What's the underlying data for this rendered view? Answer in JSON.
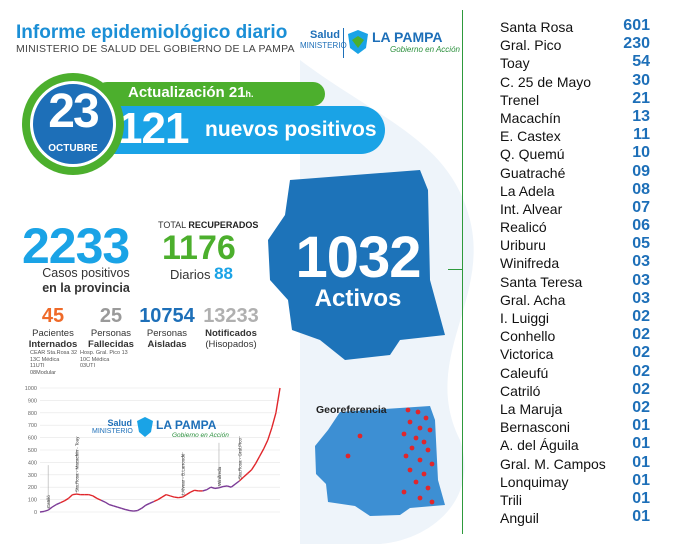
{
  "colors": {
    "blue": "#1aa3e6",
    "dark_blue": "#1d6fb8",
    "green": "#4caf2d",
    "orange": "#ef6a29",
    "gray": "#9a9a9a",
    "red": "#e0262b",
    "map_blue": "#1d73b9"
  },
  "header": {
    "title": "Informe epidemiológico diario",
    "subtitle": "MINISTERIO DE SALUD DEL GOBIERNO DE LA PAMPA"
  },
  "logo": {
    "salud": "Salud",
    "ministerio": "MINISTERIO",
    "lapampa": "LA PAMPA",
    "gobierno": "Gobierno en Acción",
    "icon": "la-pampa-shield-icon"
  },
  "update": {
    "day": "23",
    "month": "OCTUBRE",
    "label": "Actualización 21",
    "hour_suffix": "h.",
    "new_positives": "121",
    "new_positives_label": "nuevos positivos"
  },
  "totals": {
    "cases": "2233",
    "cases_line1": "Casos positivos",
    "cases_line2": "en la provincia",
    "recovered_prefix": "TOTAL",
    "recovered_label": "RECUPERADOS",
    "recovered": "1176",
    "daily_label": "Diarios",
    "daily": "88",
    "active": "1032",
    "active_label": "Activos"
  },
  "stats": [
    {
      "value": "45",
      "line1": "Pacientes",
      "line2": "Internados"
    },
    {
      "value": "25",
      "line1": "Personas",
      "line2": "Fallecidas"
    },
    {
      "value": "10754",
      "line1": "Personas",
      "line2": "Aisladas"
    },
    {
      "value": "13233",
      "line1": "Notificados",
      "line2": "(Hisopados)"
    }
  ],
  "hospital_notes": {
    "a": [
      "CEAR Sta.Rosa 32",
      "13C Médica",
      "11UTI",
      "08Modular"
    ],
    "b": [
      "Hosp. Gral. Pico 13",
      "10C Médica",
      "03UTI"
    ]
  },
  "georef_title": "Georeferencia",
  "chart_data": {
    "type": "line",
    "y_ticks": [
      "0",
      "100",
      "200",
      "300",
      "400",
      "500",
      "600",
      "700",
      "800",
      "900",
      "1000"
    ],
    "ylim": [
      0,
      1000
    ],
    "x": [
      0,
      1,
      2,
      3,
      4,
      5,
      6,
      7,
      8,
      9,
      10,
      11,
      12,
      13,
      14,
      15,
      16,
      17,
      18,
      19,
      20,
      21,
      22,
      23,
      24,
      25,
      26,
      27,
      28,
      29,
      30,
      31,
      32,
      33,
      34,
      35,
      36,
      37,
      38,
      39,
      40,
      41,
      42,
      43,
      44,
      45,
      46,
      47,
      48,
      49,
      50,
      51,
      52,
      53,
      54,
      55,
      56,
      57,
      58,
      59
    ],
    "values": [
      0,
      5,
      15,
      40,
      60,
      75,
      90,
      110,
      140,
      145,
      140,
      140,
      140,
      130,
      110,
      95,
      80,
      60,
      50,
      40,
      30,
      20,
      12,
      8,
      12,
      30,
      55,
      70,
      85,
      100,
      120,
      140,
      130,
      120,
      115,
      120,
      140,
      160,
      175,
      170,
      170,
      180,
      200,
      190,
      195,
      205,
      210,
      200,
      225,
      250,
      280,
      310,
      340,
      390,
      450,
      510,
      580,
      680,
      800,
      1000
    ],
    "annotations": [
      "Catriló",
      "Sta.Rosa - Macachín - Toay",
      "I.Alvear - B.Larroudé",
      "Winifreda",
      "Sta.Rosa - Gral.Pico"
    ]
  },
  "cities": [
    {
      "name": "Santa Rosa",
      "count": "601"
    },
    {
      "name": "Gral. Pico",
      "count": "230"
    },
    {
      "name": "Toay",
      "count": "54"
    },
    {
      "name": "C. 25 de Mayo",
      "count": "30"
    },
    {
      "name": "Trenel",
      "count": "21"
    },
    {
      "name": "Macachín",
      "count": "13"
    },
    {
      "name": "E. Castex",
      "count": "11"
    },
    {
      "name": "Q. Quemú",
      "count": "10"
    },
    {
      "name": "Guatraché",
      "count": "09"
    },
    {
      "name": "La Adela",
      "count": "08"
    },
    {
      "name": "Int. Alvear",
      "count": "07"
    },
    {
      "name": "Realicó",
      "count": "06"
    },
    {
      "name": "Uriburu",
      "count": "05"
    },
    {
      "name": "Winifreda",
      "count": "03"
    },
    {
      "name": "Santa Teresa",
      "count": "03"
    },
    {
      "name": "Gral. Acha",
      "count": "03"
    },
    {
      "name": "I. Luiggi",
      "count": "02"
    },
    {
      "name": "Conhello",
      "count": "02"
    },
    {
      "name": "Victorica",
      "count": "02"
    },
    {
      "name": "Caleufú",
      "count": "02"
    },
    {
      "name": "Catriló",
      "count": "02"
    },
    {
      "name": "La Maruja",
      "count": "02"
    },
    {
      "name": "Bernasconi",
      "count": "01"
    },
    {
      "name": "A. del Águila",
      "count": "01"
    },
    {
      "name": "Gral. M. Campos",
      "count": "01"
    },
    {
      "name": "Lonquimay",
      "count": "01"
    },
    {
      "name": "Trili",
      "count": "01"
    },
    {
      "name": "Anguil",
      "count": "01"
    }
  ]
}
